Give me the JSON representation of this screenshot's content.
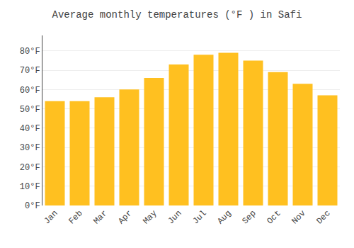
{
  "chart_data": {
    "type": "bar",
    "title": "Average monthly temperatures (°F ) in Safi",
    "categories": [
      "Jan",
      "Feb",
      "Mar",
      "Apr",
      "May",
      "Jun",
      "Jul",
      "Aug",
      "Sep",
      "Oct",
      "Nov",
      "Dec"
    ],
    "values": [
      54,
      54,
      56,
      60,
      66,
      73,
      78,
      79,
      75,
      69,
      63,
      57
    ],
    "color": "#FFC020",
    "ylim": [
      0,
      88
    ],
    "yticks": [
      {
        "value": 0,
        "label": "0°F"
      },
      {
        "value": 10,
        "label": "10°F"
      },
      {
        "value": 20,
        "label": "20°F"
      },
      {
        "value": 30,
        "label": "30°F"
      },
      {
        "value": 40,
        "label": "40°F"
      },
      {
        "value": 50,
        "label": "50°F"
      },
      {
        "value": 60,
        "label": "60°F"
      },
      {
        "value": 70,
        "label": "70°F"
      },
      {
        "value": 80,
        "label": "80°F"
      }
    ],
    "grid": true
  }
}
